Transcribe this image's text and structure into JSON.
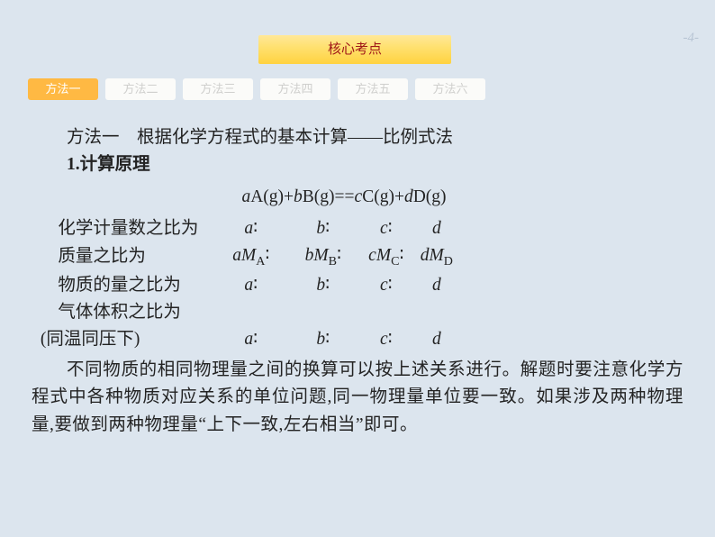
{
  "page_number": "-4-",
  "header_chip": "核心考点",
  "tabs": [
    {
      "label": "方法一",
      "active": true
    },
    {
      "label": "方法二",
      "active": false
    },
    {
      "label": "方法三",
      "active": false
    },
    {
      "label": "方法四",
      "active": false
    },
    {
      "label": "方法五",
      "active": false
    },
    {
      "label": "方法六",
      "active": false
    }
  ],
  "title_prefix": "方法一",
  "title_rest": "　根据化学方程式的基本计算——比例式法",
  "section_num": "1",
  "section_label": ".计算原理",
  "equation": {
    "a": "a",
    "A": "A(g)+",
    "b": "b",
    "B": "B(g)==",
    "c": "c",
    "C": "C(g)+",
    "d": "d",
    "D": "D(g)"
  },
  "rows": [
    {
      "label": "化学计量数之比为",
      "cells": [
        "a",
        "b",
        "c",
        "d"
      ],
      "mtype": "plain"
    },
    {
      "label": "质量之比为",
      "cells": [
        "aM|A",
        "bM|B",
        "cM|C",
        "dM|D"
      ],
      "mtype": "mass"
    },
    {
      "label": "物质的量之比为",
      "cells": [
        "a",
        "b",
        "c",
        "d"
      ],
      "mtype": "plain"
    },
    {
      "label": "气体体积之比为",
      "cells": [
        "",
        "",
        "",
        ""
      ],
      "mtype": "empty"
    }
  ],
  "row_extra_label": "(同温同压下)",
  "row_extra_cells": [
    "a",
    "b",
    "c",
    "d"
  ],
  "paragraph": "不同物质的相同物理量之间的换算可以按上述关系进行。解题时要注意化学方程式中各种物质对应关系的单位问题,同一物理量单位要一致。如果涉及两种物理量,要做到两种物理量“上下一致,左右相当”即可。",
  "colors": {
    "page_bg": "#dce5ee",
    "chip_grad_top": "#ffe899",
    "chip_grad_bottom": "#ffd23f",
    "chip_text": "#a01818",
    "tab_active_bg": "#ffb943",
    "tab_inactive_bg": "#fbfbf9",
    "tab_inactive_fg": "#cfcfcd",
    "tab_active_fg": "#ffffff",
    "body_text": "#232323",
    "page_num_fg": "#b8c5d4"
  }
}
